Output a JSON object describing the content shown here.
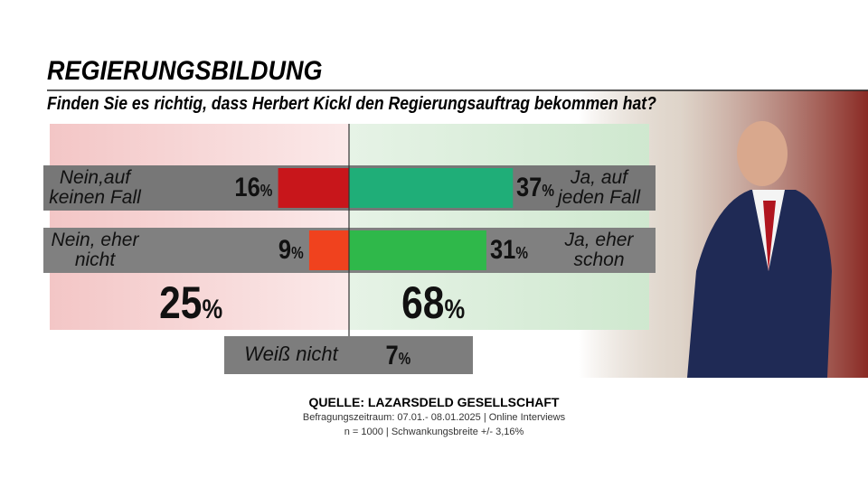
{
  "chart_data": {
    "type": "diverging_bar",
    "title": "REGIERUNGSBILDUNG",
    "subtitle": "Finden Sie es richtig, dass Herbert Kickl den Regierungsauftrag bekommen hat?",
    "negative": {
      "categories": [
        "Nein,auf keinen Fall",
        "Nein, eher nicht"
      ],
      "values": [
        16,
        9
      ],
      "value_labels": [
        "16%",
        "9%"
      ],
      "colors": [
        "#c8161b",
        "#f0421e"
      ],
      "total": 25,
      "total_label": "25%"
    },
    "positive": {
      "categories": [
        "Ja, auf jeden Fall",
        "Ja, eher schon"
      ],
      "values": [
        37,
        31
      ],
      "value_labels": [
        "37%",
        "31%"
      ],
      "colors": [
        "#1fae78",
        "#2fb84a"
      ],
      "total": 68,
      "total_label": "68%"
    },
    "dont_know": {
      "label": "Weiß nicht",
      "value": 7,
      "value_label": "7%"
    },
    "source": "QUELLE: LAZARSDELD GESELLSCHAFT",
    "notes": [
      "Befragungszeitraum: 07.01.- 08.01.2025 | Online Interviews",
      "n = 1000 | Schwankungsbreite +/- 3,16%"
    ]
  }
}
